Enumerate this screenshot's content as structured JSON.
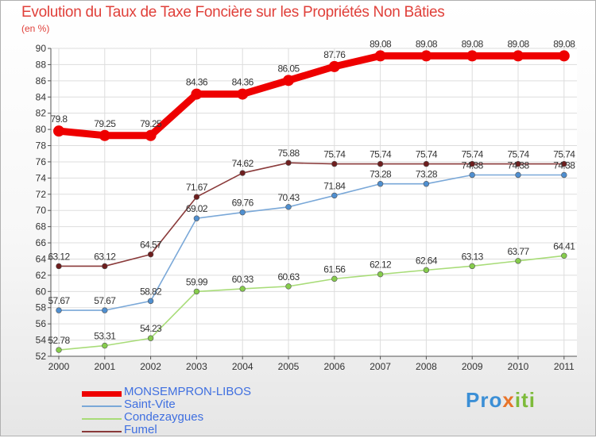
{
  "header": {
    "title": "Evolution du Taux de Taxe Foncière sur les Propriétés Non Bâties",
    "unit": "(en %)"
  },
  "brand": {
    "part1": "Pro",
    "part2": "x",
    "part3": "iti"
  },
  "chart_data": {
    "type": "line",
    "title": "Evolution du Taux de Taxe Foncière sur les Propriétés Non Bâties",
    "ylabel": "(en %)",
    "xlabel": "",
    "ylim": [
      52,
      90
    ],
    "yticks": [
      52,
      54,
      56,
      58,
      60,
      62,
      64,
      66,
      68,
      70,
      72,
      74,
      76,
      78,
      80,
      82,
      84,
      86,
      88,
      90
    ],
    "categories": [
      "2000",
      "2001",
      "2002",
      "2003",
      "2004",
      "2005",
      "2006",
      "2007",
      "2008",
      "2009",
      "2010",
      "2011"
    ],
    "series": [
      {
        "name": "MONSEMPRON-LIBOS",
        "color": "#ee0000",
        "point_color": "#ee0000",
        "values": [
          79.8,
          79.25,
          79.25,
          84.36,
          84.36,
          86.05,
          87.76,
          89.08,
          89.08,
          89.08,
          89.08,
          89.08
        ],
        "labels": [
          "79.8",
          "79.25",
          "79.25",
          "84.36",
          "84.36",
          "86.05",
          "87.76",
          "89.08",
          "89.08",
          "89.08",
          "89.08",
          "89.08"
        ]
      },
      {
        "name": "Fumel",
        "color": "#8a3a3a",
        "point_color": "#6e1e1e",
        "values": [
          63.12,
          63.12,
          64.57,
          71.67,
          74.62,
          75.88,
          75.74,
          75.74,
          75.74,
          75.74,
          75.74,
          75.74
        ],
        "labels": [
          "63.12",
          "63.12",
          "64.57",
          "71.67",
          "74.62",
          "75.88",
          "75.74",
          "75.74",
          "75.74",
          "75.74",
          "75.74",
          "75.74"
        ]
      },
      {
        "name": "Saint-Vite",
        "color": "#7aa8d8",
        "point_color": "#4f8fd0",
        "values": [
          57.67,
          57.67,
          58.82,
          69.02,
          69.76,
          70.43,
          71.84,
          73.28,
          73.28,
          74.38,
          74.38,
          74.38
        ],
        "labels": [
          "57.67",
          "57.67",
          "58.82",
          "69.02",
          "69.76",
          "70.43",
          "71.84",
          "73.28",
          "73.28",
          "74.38",
          "74.38",
          "74.38"
        ]
      },
      {
        "name": "Condezaygues",
        "color": "#a8dc78",
        "point_color": "#86cc4c",
        "values": [
          52.78,
          53.31,
          54.23,
          59.99,
          60.33,
          60.63,
          61.56,
          62.12,
          62.64,
          63.13,
          63.77,
          64.41
        ],
        "labels": [
          "52.78",
          "53.31",
          "54.23",
          "59.99",
          "60.33",
          "60.63",
          "61.56",
          "62.12",
          "62.64",
          "63.13",
          "63.77",
          "64.41"
        ]
      }
    ],
    "legend": [
      {
        "name": "MONSEMPRON-LIBOS",
        "color": "#ee0000"
      },
      {
        "name": "Saint-Vite",
        "color": "#7aa8d8"
      },
      {
        "name": "Condezaygues",
        "color": "#a8dc78"
      },
      {
        "name": "Fumel",
        "color": "#8a3a3a"
      }
    ],
    "legend_position": "bottom-left",
    "grid": true
  }
}
